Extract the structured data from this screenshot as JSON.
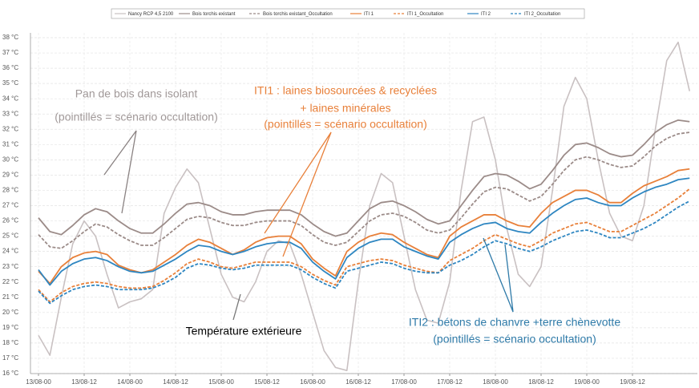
{
  "chart_data": {
    "type": "line",
    "categories": [
      "13/08-00",
      null,
      null,
      null,
      "13/08-12",
      null,
      null,
      null,
      "14/08-00",
      null,
      null,
      null,
      "14/08-12",
      null,
      null,
      null,
      "15/08-00",
      null,
      null,
      null,
      "15/08-12",
      null,
      null,
      null,
      "16/08-00",
      null,
      null,
      null,
      "16/08-12",
      null,
      null,
      null,
      "17/08-00",
      null,
      null,
      null,
      "17/08-12",
      null,
      null,
      null,
      "18/08-00",
      null,
      null,
      null,
      "18/08-12",
      null,
      null,
      null,
      "19/08-00",
      null,
      null,
      null,
      "19/08-12",
      null,
      null,
      null,
      null,
      null
    ],
    "series": [
      {
        "name": "Nancy RCP 4,5 2100",
        "color": "#c9c1c2",
        "style": "solid",
        "values": [
          18.5,
          17.2,
          21,
          24.5,
          26,
          25,
          22.5,
          20.3,
          20.7,
          20.9,
          21.5,
          26.5,
          28.2,
          29.4,
          28.5,
          25.5,
          22.5,
          21,
          20.7,
          22,
          24,
          24.7,
          24.5,
          22.5,
          20,
          17.5,
          16.4,
          16.2,
          22,
          27,
          29.1,
          28.5,
          25,
          21.5,
          19.5,
          19.3,
          22,
          28,
          32.5,
          32.8,
          30,
          25.5,
          22.5,
          21.7,
          23,
          28,
          33.5,
          35.4,
          34,
          30,
          26.5,
          25,
          24.7,
          27,
          32,
          36.5,
          37.7,
          34.5
        ]
      },
      {
        "name": "Bois torchis existant",
        "color": "#9b8b88",
        "style": "solid",
        "values": [
          26.2,
          25.3,
          25.1,
          25.7,
          26.4,
          26.8,
          26.6,
          26.0,
          25.5,
          25.2,
          25.2,
          25.8,
          26.5,
          27.1,
          27.2,
          27.0,
          26.6,
          26.4,
          26.4,
          26.6,
          26.7,
          26.7,
          26.7,
          26.4,
          25.8,
          25.3,
          25.0,
          25.2,
          26.0,
          26.8,
          27.2,
          27.3,
          27.0,
          26.6,
          26.1,
          25.8,
          26.0,
          27.0,
          28.0,
          28.9,
          29.1,
          29.0,
          28.6,
          28.1,
          28.4,
          29.3,
          30.3,
          31.0,
          31.1,
          30.8,
          30.4,
          30.2,
          30.3,
          31.0,
          31.8,
          32.3,
          32.6,
          32.5
        ]
      },
      {
        "name": "Bois torchis existant_Occultation",
        "color": "#9b8b88",
        "style": "dashed",
        "values": [
          25.1,
          24.3,
          24.2,
          24.7,
          25.3,
          25.8,
          25.6,
          25.1,
          24.7,
          24.4,
          24.4,
          24.9,
          25.5,
          26.1,
          26.3,
          26.2,
          25.9,
          25.7,
          25.7,
          25.9,
          26.0,
          26.0,
          26.0,
          25.7,
          25.1,
          24.6,
          24.4,
          24.6,
          25.3,
          26.0,
          26.4,
          26.5,
          26.3,
          25.9,
          25.4,
          25.2,
          25.4,
          26.2,
          27.1,
          27.9,
          28.2,
          28.1,
          27.7,
          27.3,
          27.6,
          28.4,
          29.3,
          30.0,
          30.2,
          30.0,
          29.7,
          29.5,
          29.6,
          30.2,
          30.9,
          31.4,
          31.7,
          31.8
        ]
      },
      {
        "name": "ITI 1",
        "color": "#e8803a",
        "style": "solid",
        "values": [
          22.7,
          21.9,
          23.0,
          23.6,
          23.9,
          24.0,
          23.8,
          23.1,
          22.8,
          22.6,
          22.8,
          23.3,
          23.8,
          24.4,
          24.8,
          24.6,
          24.2,
          23.8,
          24.1,
          24.6,
          24.9,
          25.0,
          25.0,
          24.5,
          23.5,
          22.9,
          22.4,
          24.0,
          24.6,
          25.0,
          25.2,
          25.1,
          24.6,
          24.2,
          23.8,
          23.6,
          25.0,
          25.6,
          26.0,
          26.4,
          26.4,
          26.0,
          25.7,
          25.6,
          26.5,
          27.2,
          27.6,
          28.0,
          28.0,
          27.7,
          27.2,
          27.2,
          27.8,
          28.3,
          28.6,
          28.9,
          29.3,
          29.4
        ]
      },
      {
        "name": "ITI 1_Occultation",
        "color": "#e8803a",
        "style": "dashed",
        "values": [
          21.5,
          20.7,
          21.3,
          21.7,
          21.9,
          22.0,
          21.9,
          21.7,
          21.6,
          21.6,
          21.7,
          22.1,
          22.6,
          23.2,
          23.5,
          23.3,
          23.0,
          22.9,
          23.1,
          23.3,
          23.3,
          23.3,
          23.3,
          23.0,
          22.5,
          22.1,
          21.8,
          23.0,
          23.2,
          23.4,
          23.5,
          23.4,
          23.1,
          22.9,
          22.7,
          22.6,
          23.4,
          23.8,
          24.2,
          24.7,
          25.1,
          24.8,
          24.5,
          24.3,
          24.7,
          25.2,
          25.5,
          25.8,
          25.9,
          25.6,
          25.3,
          25.3,
          25.7,
          26.1,
          26.5,
          27.0,
          27.5,
          28.1
        ]
      },
      {
        "name": "ITI 2",
        "color": "#2e86c1",
        "style": "solid",
        "values": [
          22.8,
          21.8,
          22.7,
          23.2,
          23.5,
          23.6,
          23.4,
          23.0,
          22.7,
          22.6,
          22.7,
          23.1,
          23.5,
          24.0,
          24.4,
          24.3,
          24.0,
          23.8,
          24.0,
          24.3,
          24.5,
          24.6,
          24.6,
          24.2,
          23.3,
          22.7,
          22.2,
          23.6,
          24.2,
          24.6,
          24.8,
          24.8,
          24.3,
          24.0,
          23.7,
          23.5,
          24.6,
          25.1,
          25.5,
          25.8,
          25.9,
          25.5,
          25.3,
          25.2,
          25.9,
          26.5,
          27.0,
          27.4,
          27.5,
          27.2,
          27.0,
          27.0,
          27.5,
          27.9,
          28.2,
          28.4,
          28.7,
          28.8
        ]
      },
      {
        "name": "ITI 2_Occultation",
        "color": "#2e86c1",
        "style": "dashed",
        "values": [
          21.4,
          20.6,
          21.1,
          21.5,
          21.7,
          21.8,
          21.7,
          21.5,
          21.5,
          21.5,
          21.6,
          21.9,
          22.3,
          22.9,
          23.2,
          23.1,
          22.9,
          22.8,
          22.9,
          23.1,
          23.1,
          23.1,
          23.1,
          22.8,
          22.3,
          21.9,
          21.6,
          22.7,
          22.9,
          23.1,
          23.3,
          23.2,
          22.9,
          22.7,
          22.6,
          22.6,
          23.1,
          23.4,
          23.8,
          24.3,
          24.7,
          24.5,
          24.2,
          24.0,
          24.3,
          24.7,
          25.0,
          25.3,
          25.4,
          25.2,
          24.9,
          24.9,
          25.2,
          25.5,
          25.9,
          26.4,
          26.9,
          27.3
        ]
      }
    ],
    "ylim": [
      16,
      38
    ],
    "yticks": [
      {
        "value": 16,
        "label": "16 °C"
      },
      {
        "value": 17,
        "label": "17 °C"
      },
      {
        "value": 18,
        "label": "18 °C"
      },
      {
        "value": 19,
        "label": "19 °C"
      },
      {
        "value": 20,
        "label": "20 °C"
      },
      {
        "value": 21,
        "label": "21 °C"
      },
      {
        "value": 22,
        "label": "22 °C"
      },
      {
        "value": 23,
        "label": "23 °C"
      },
      {
        "value": 24,
        "label": "24 °C"
      },
      {
        "value": 25,
        "label": "25 °C"
      },
      {
        "value": 26,
        "label": "26 °C"
      },
      {
        "value": 27,
        "label": "27 °C"
      },
      {
        "value": 28,
        "label": "28 °C"
      },
      {
        "value": 29,
        "label": "29 °C"
      },
      {
        "value": 30,
        "label": "30 °C"
      },
      {
        "value": 31,
        "label": "31 °C"
      },
      {
        "value": 32,
        "label": "32 °C"
      },
      {
        "value": 33,
        "label": "33 °C"
      },
      {
        "value": 34,
        "label": "34 °C"
      },
      {
        "value": 35,
        "label": "35 °C"
      },
      {
        "value": 36,
        "label": "36 °C"
      },
      {
        "value": 37,
        "label": "37 °C"
      },
      {
        "value": 38,
        "label": "38 °C"
      }
    ],
    "grid": true,
    "legend": "top",
    "annotations": [
      {
        "lines": [
          "Pan de bois dans isolant",
          "(pointillés = scénario occultation)"
        ],
        "color": "#a09898"
      },
      {
        "lines": [
          "ITI1 : laines biosourcées & recyclées",
          "+ laines minérales",
          "(pointillés = scénario occultation)"
        ],
        "color": "#e8803a"
      },
      {
        "lines": [
          "Température extérieure"
        ],
        "color": "#000000"
      },
      {
        "lines": [
          "ITI2 : bétons de chanvre +terre chènevotte",
          "(pointillés = scénario occultation)"
        ],
        "color": "#2e7aa8"
      }
    ]
  }
}
